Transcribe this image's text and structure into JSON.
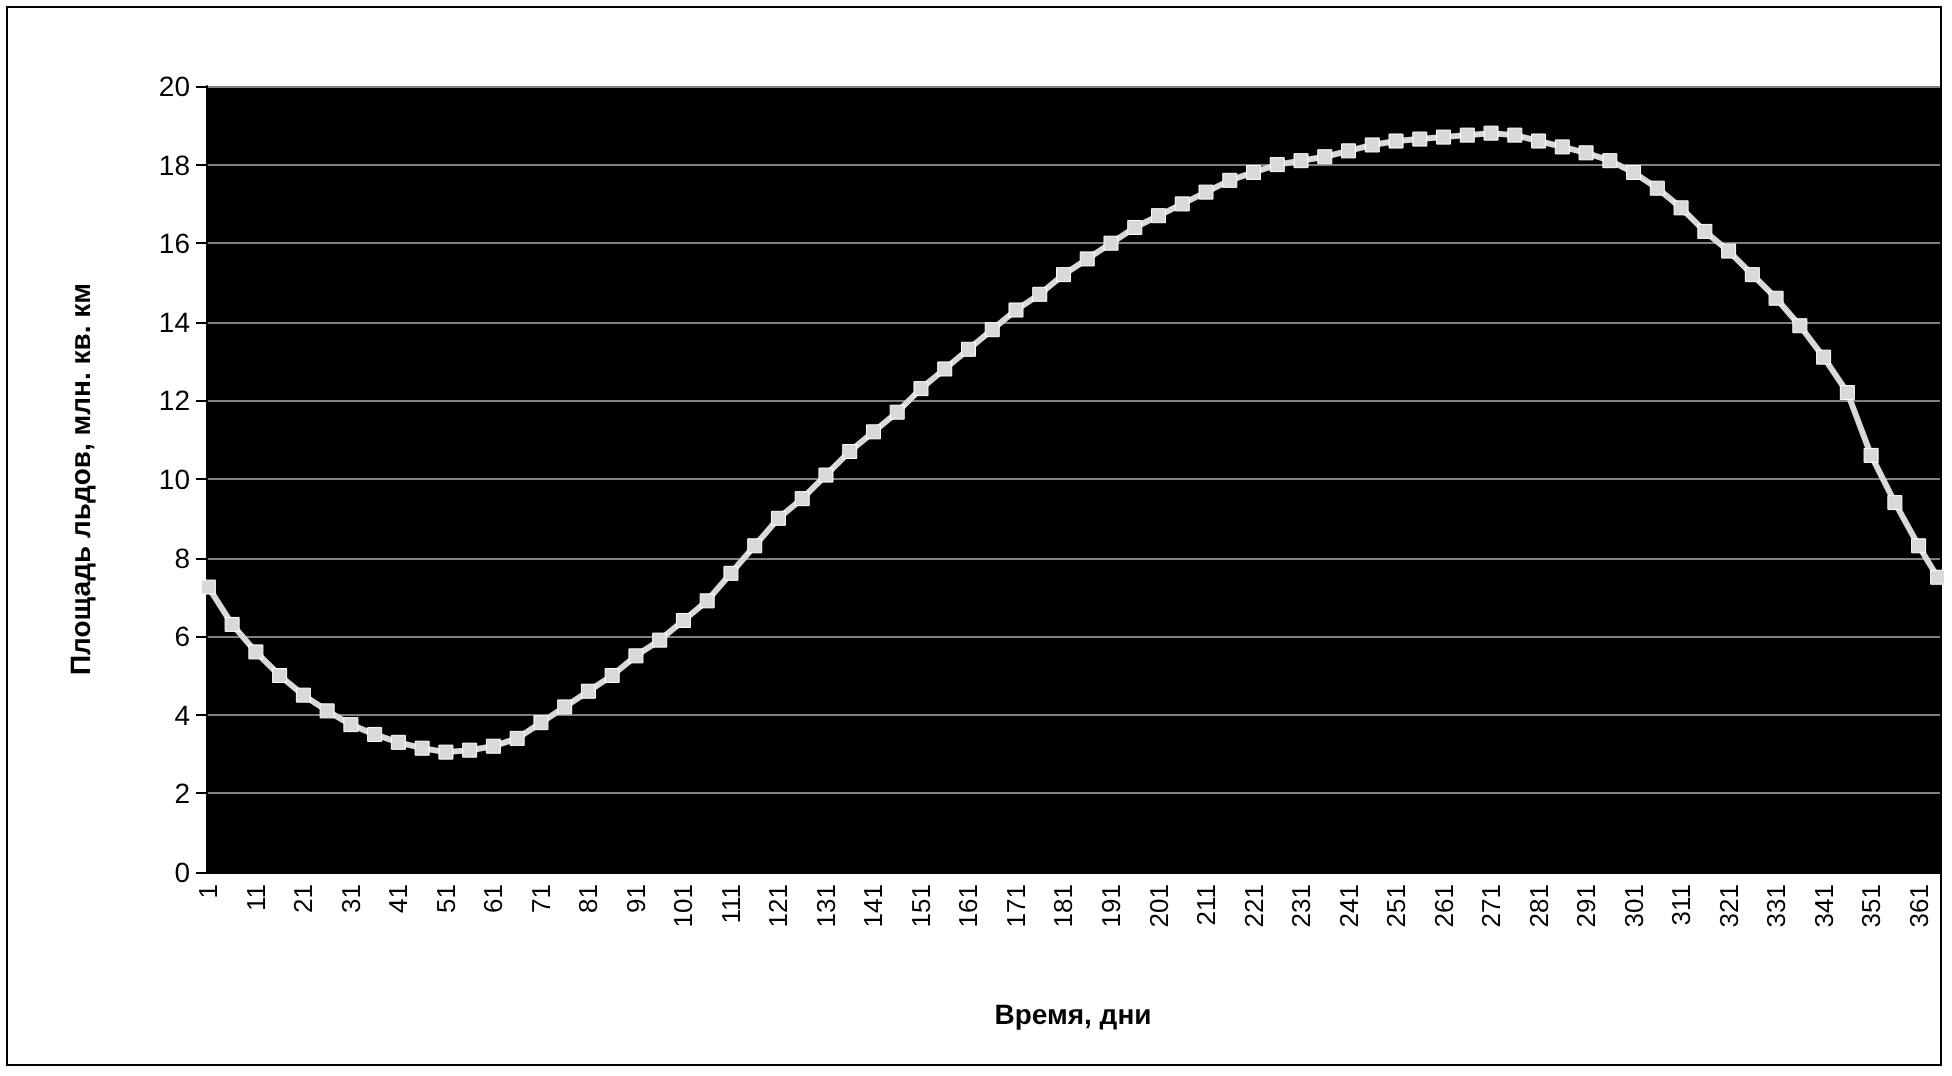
{
  "chart_data": {
    "type": "line",
    "xlabel": "Время, дни",
    "ylabel": "Площадь льдов, млн. кв. км",
    "x": [
      1,
      6,
      11,
      16,
      21,
      26,
      31,
      36,
      41,
      46,
      51,
      56,
      61,
      66,
      71,
      76,
      81,
      86,
      91,
      96,
      101,
      106,
      111,
      116,
      121,
      126,
      131,
      136,
      141,
      146,
      151,
      156,
      161,
      166,
      171,
      176,
      181,
      186,
      191,
      196,
      201,
      206,
      211,
      216,
      221,
      226,
      231,
      236,
      241,
      246,
      251,
      256,
      261,
      266,
      271,
      276,
      281,
      286,
      291,
      296,
      301,
      306,
      311,
      316,
      321,
      326,
      331,
      336,
      341,
      346,
      351,
      356,
      361,
      365
    ],
    "series": [
      {
        "color": "#d9d9d9",
        "values": [
          7.25,
          6.3,
          5.6,
          5.0,
          4.5,
          4.1,
          3.75,
          3.5,
          3.3,
          3.15,
          3.05,
          3.1,
          3.2,
          3.4,
          3.8,
          4.2,
          4.6,
          5.0,
          5.5,
          5.9,
          6.4,
          6.9,
          7.6,
          8.3,
          9.0,
          9.5,
          10.1,
          10.7,
          11.2,
          11.7,
          12.3,
          12.8,
          13.3,
          13.8,
          14.3,
          14.7,
          15.2,
          15.6,
          16.0,
          16.4,
          16.7,
          17.0,
          17.3,
          17.6,
          17.8,
          18.0,
          18.1,
          18.2,
          18.35,
          18.5,
          18.6,
          18.65,
          18.7,
          18.75,
          18.8,
          18.75,
          18.6,
          18.45,
          18.3,
          18.1,
          17.8,
          17.4,
          16.9,
          16.3,
          15.8,
          15.2,
          14.6,
          13.9,
          13.1,
          12.2,
          10.6,
          9.4,
          8.3,
          7.5
        ]
      }
    ],
    "xlim": [
      0.5,
      365.5
    ],
    "xticks": [
      1,
      11,
      21,
      31,
      41,
      51,
      61,
      71,
      81,
      91,
      101,
      111,
      121,
      131,
      141,
      151,
      161,
      171,
      181,
      191,
      201,
      211,
      221,
      231,
      241,
      251,
      261,
      271,
      281,
      291,
      301,
      311,
      321,
      331,
      341,
      351,
      361
    ],
    "ylim": [
      0,
      20
    ],
    "yticks": [
      0,
      2,
      4,
      6,
      8,
      10,
      12,
      14,
      16,
      18,
      20
    ],
    "grid": "y",
    "marker": "square",
    "line_style": "solid"
  }
}
